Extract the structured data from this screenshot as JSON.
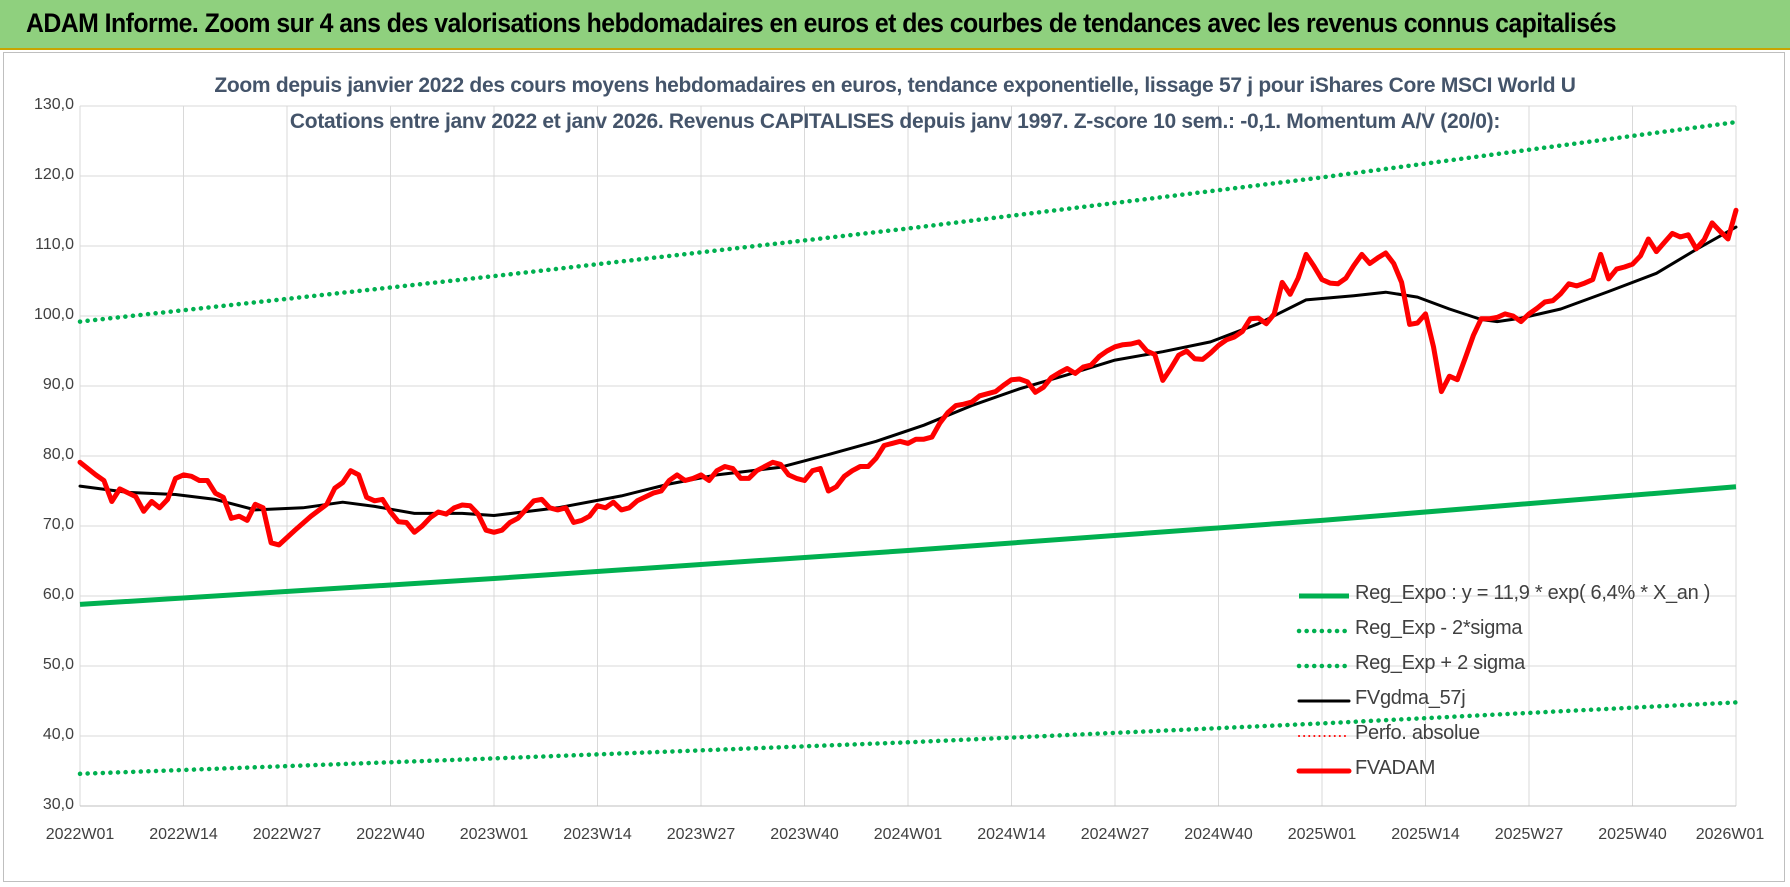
{
  "header": {
    "title": "ADAM Informe. Zoom sur 4 ans des valorisations hebdomadaires en euros et des courbes de tendances avec les revenus connus capitalisés"
  },
  "colors": {
    "header_bg": "#8fd07e",
    "regression": "#00b050",
    "fvgdma": "#000000",
    "fvadam": "#ff0000",
    "perfo": "#ff0000"
  },
  "chart_data": {
    "type": "line",
    "title": "Zoom depuis janvier 2022 des cours moyens hebdomadaires en euros, tendance exponentielle, lissage 57 j pour iShares Core MSCI World U",
    "subtitle": "Cotations entre janv 2022 et janv 2026. Revenus CAPITALISES depuis janv 1997. Z-score 10 sem.: -0,1. Momentum A/V (20/0):",
    "x_range_weeks": [
      0,
      208
    ],
    "ylim": [
      30,
      130
    ],
    "grid": true,
    "legend_position": "bottom-right",
    "y_ticks": [
      "30,0",
      "40,0",
      "50,0",
      "60,0",
      "70,0",
      "80,0",
      "90,0",
      "100,0",
      "110,0",
      "120,0",
      "130,0"
    ],
    "x_tick_positions_weeks": [
      0,
      13,
      26,
      39,
      52,
      65,
      78,
      91,
      104,
      117,
      130,
      143,
      156,
      169,
      182,
      195,
      208
    ],
    "x_ticks": [
      "2022W01",
      "2022W14",
      "2022W27",
      "2022W40",
      "2023W01",
      "2023W14",
      "2023W27",
      "2023W40",
      "2024W01",
      "2024W14",
      "2024W27",
      "2024W40",
      "2025W01",
      "2025W14",
      "2025W27",
      "2025W40",
      "2026W01"
    ],
    "series": [
      {
        "name": "Reg_Expo : y = 11,9 * exp( 6,4% *  X_an )",
        "key": "reg",
        "style": "solid",
        "points": [
          [
            0,
            58.8
          ],
          [
            52,
            62.5
          ],
          [
            104,
            66.5
          ],
          [
            156,
            70.8
          ],
          [
            208,
            75.6
          ]
        ]
      },
      {
        "name": "Reg_Exp - 2*sigma",
        "key": "reg_low",
        "style": "dotted",
        "points": [
          [
            0,
            34.6
          ],
          [
            52,
            36.8
          ],
          [
            104,
            39.1
          ],
          [
            156,
            41.8
          ],
          [
            208,
            44.8
          ]
        ]
      },
      {
        "name": "Reg_Exp + 2 sigma",
        "key": "reg_high",
        "style": "dotted",
        "points": [
          [
            0,
            99.2
          ],
          [
            52,
            105.7
          ],
          [
            104,
            112.5
          ],
          [
            156,
            119.8
          ],
          [
            208,
            127.7
          ]
        ]
      },
      {
        "name": "FVgdma_57j",
        "key": "fvgdma",
        "style": "solid",
        "points": [
          [
            0,
            75.7
          ],
          [
            6,
            74.8
          ],
          [
            12,
            74.5
          ],
          [
            17,
            73.8
          ],
          [
            22,
            72.3
          ],
          [
            28,
            72.6
          ],
          [
            33,
            73.4
          ],
          [
            37,
            72.8
          ],
          [
            42,
            71.8
          ],
          [
            48,
            71.8
          ],
          [
            52,
            71.5
          ],
          [
            60,
            72.6
          ],
          [
            68,
            74.3
          ],
          [
            74,
            76.0
          ],
          [
            80,
            77.3
          ],
          [
            88,
            78.4
          ],
          [
            94,
            80.2
          ],
          [
            100,
            82.1
          ],
          [
            106,
            84.4
          ],
          [
            112,
            87.2
          ],
          [
            118,
            89.6
          ],
          [
            124,
            91.6
          ],
          [
            130,
            93.7
          ],
          [
            136,
            94.9
          ],
          [
            142,
            96.3
          ],
          [
            148,
            98.9
          ],
          [
            154,
            102.3
          ],
          [
            160,
            102.9
          ],
          [
            164,
            103.4
          ],
          [
            168,
            102.7
          ],
          [
            172,
            101.0
          ],
          [
            176,
            99.5
          ],
          [
            178,
            99.2
          ],
          [
            181,
            99.7
          ],
          [
            186,
            101.0
          ],
          [
            192,
            103.5
          ],
          [
            198,
            106.1
          ],
          [
            203,
            109.5
          ],
          [
            208,
            112.7
          ]
        ]
      },
      {
        "name": "Perfo. absolue",
        "key": "perfo",
        "style": "dotted",
        "points": []
      },
      {
        "name": "FVADAM",
        "key": "fvadam",
        "style": "solid",
        "points": [
          [
            0,
            79.1
          ],
          [
            2,
            77.3
          ],
          [
            3,
            76.5
          ],
          [
            4,
            73.5
          ],
          [
            5,
            75.3
          ],
          [
            7,
            74.2
          ],
          [
            8,
            72.1
          ],
          [
            9,
            73.5
          ],
          [
            10,
            72.6
          ],
          [
            11,
            73.8
          ],
          [
            12,
            76.8
          ],
          [
            13,
            77.3
          ],
          [
            14,
            77.1
          ],
          [
            15,
            76.5
          ],
          [
            16,
            76.5
          ],
          [
            17,
            74.7
          ],
          [
            18,
            74.1
          ],
          [
            19,
            71.1
          ],
          [
            20,
            71.4
          ],
          [
            21,
            70.8
          ],
          [
            22,
            73.1
          ],
          [
            23,
            72.6
          ],
          [
            24,
            67.6
          ],
          [
            25,
            67.3
          ],
          [
            27,
            69.4
          ],
          [
            29,
            71.4
          ],
          [
            31,
            73.1
          ],
          [
            32,
            75.4
          ],
          [
            33,
            76.2
          ],
          [
            34,
            77.9
          ],
          [
            35,
            77.3
          ],
          [
            36,
            74.1
          ],
          [
            37,
            73.6
          ],
          [
            38,
            73.8
          ],
          [
            39,
            72.0
          ],
          [
            40,
            70.6
          ],
          [
            41,
            70.5
          ],
          [
            42,
            69.1
          ],
          [
            43,
            70.0
          ],
          [
            44,
            71.2
          ],
          [
            45,
            72.0
          ],
          [
            46,
            71.7
          ],
          [
            47,
            72.6
          ],
          [
            48,
            73.0
          ],
          [
            49,
            72.9
          ],
          [
            50,
            71.7
          ],
          [
            51,
            69.4
          ],
          [
            52,
            69.1
          ],
          [
            53,
            69.4
          ],
          [
            54,
            70.5
          ],
          [
            55,
            71.1
          ],
          [
            57,
            73.6
          ],
          [
            58,
            73.8
          ],
          [
            59,
            72.6
          ],
          [
            60,
            72.3
          ],
          [
            61,
            72.6
          ],
          [
            62,
            70.5
          ],
          [
            63,
            70.8
          ],
          [
            64,
            71.4
          ],
          [
            65,
            72.9
          ],
          [
            66,
            72.6
          ],
          [
            67,
            73.4
          ],
          [
            68,
            72.3
          ],
          [
            69,
            72.6
          ],
          [
            70,
            73.6
          ],
          [
            72,
            74.7
          ],
          [
            73,
            75.0
          ],
          [
            74,
            76.5
          ],
          [
            75,
            77.3
          ],
          [
            76,
            76.5
          ],
          [
            77,
            76.8
          ],
          [
            78,
            77.3
          ],
          [
            79,
            76.5
          ],
          [
            80,
            77.9
          ],
          [
            81,
            78.5
          ],
          [
            82,
            78.2
          ],
          [
            83,
            76.8
          ],
          [
            84,
            76.8
          ],
          [
            85,
            77.9
          ],
          [
            86,
            78.5
          ],
          [
            87,
            79.1
          ],
          [
            88,
            78.8
          ],
          [
            89,
            77.3
          ],
          [
            90,
            76.8
          ],
          [
            91,
            76.5
          ],
          [
            92,
            77.9
          ],
          [
            93,
            78.2
          ],
          [
            94,
            75.0
          ],
          [
            95,
            75.6
          ],
          [
            96,
            77.1
          ],
          [
            97,
            77.9
          ],
          [
            98,
            78.5
          ],
          [
            99,
            78.5
          ],
          [
            100,
            79.7
          ],
          [
            101,
            81.5
          ],
          [
            102,
            81.8
          ],
          [
            103,
            82.1
          ],
          [
            104,
            81.8
          ],
          [
            105,
            82.4
          ],
          [
            106,
            82.4
          ],
          [
            107,
            82.7
          ],
          [
            108,
            84.7
          ],
          [
            109,
            86.2
          ],
          [
            110,
            87.2
          ],
          [
            111,
            87.4
          ],
          [
            112,
            87.7
          ],
          [
            113,
            88.6
          ],
          [
            114,
            88.9
          ],
          [
            115,
            89.2
          ],
          [
            116,
            90.1
          ],
          [
            117,
            90.9
          ],
          [
            118,
            91.0
          ],
          [
            119,
            90.6
          ],
          [
            120,
            89.1
          ],
          [
            121,
            89.8
          ],
          [
            122,
            91.2
          ],
          [
            123,
            91.9
          ],
          [
            124,
            92.5
          ],
          [
            125,
            91.8
          ],
          [
            126,
            92.7
          ],
          [
            127,
            93.0
          ],
          [
            128,
            94.2
          ],
          [
            129,
            95.0
          ],
          [
            130,
            95.6
          ],
          [
            131,
            95.9
          ],
          [
            132,
            96.0
          ],
          [
            133,
            96.3
          ],
          [
            134,
            95.0
          ],
          [
            135,
            94.5
          ],
          [
            136,
            90.8
          ],
          [
            137,
            92.5
          ],
          [
            138,
            94.4
          ],
          [
            139,
            95.0
          ],
          [
            140,
            93.9
          ],
          [
            141,
            93.8
          ],
          [
            142,
            94.7
          ],
          [
            143,
            95.8
          ],
          [
            144,
            96.6
          ],
          [
            145,
            97.0
          ],
          [
            146,
            97.8
          ],
          [
            147,
            99.6
          ],
          [
            148,
            99.7
          ],
          [
            149,
            98.9
          ],
          [
            150,
            100.3
          ],
          [
            151,
            104.8
          ],
          [
            152,
            103.1
          ],
          [
            153,
            105.4
          ],
          [
            154,
            108.8
          ],
          [
            155,
            107.1
          ],
          [
            156,
            105.2
          ],
          [
            157,
            104.7
          ],
          [
            158,
            104.6
          ],
          [
            159,
            105.4
          ],
          [
            160,
            107.2
          ],
          [
            161,
            108.8
          ],
          [
            162,
            107.5
          ],
          [
            163,
            108.3
          ],
          [
            164,
            109.0
          ],
          [
            165,
            107.5
          ],
          [
            166,
            104.8
          ],
          [
            167,
            98.8
          ],
          [
            168,
            99.0
          ],
          [
            169,
            100.3
          ],
          [
            170,
            95.6
          ],
          [
            171,
            89.2
          ],
          [
            172,
            91.4
          ],
          [
            173,
            90.9
          ],
          [
            174,
            94.0
          ],
          [
            175,
            97.2
          ],
          [
            176,
            99.6
          ],
          [
            177,
            99.6
          ],
          [
            178,
            99.8
          ],
          [
            179,
            100.3
          ],
          [
            180,
            100.0
          ],
          [
            181,
            99.2
          ],
          [
            182,
            100.3
          ],
          [
            183,
            101.1
          ],
          [
            184,
            102.0
          ],
          [
            185,
            102.2
          ],
          [
            186,
            103.2
          ],
          [
            187,
            104.6
          ],
          [
            188,
            104.3
          ],
          [
            189,
            104.7
          ],
          [
            190,
            105.2
          ],
          [
            191,
            108.8
          ],
          [
            192,
            105.3
          ],
          [
            193,
            106.7
          ],
          [
            194,
            107.0
          ],
          [
            195,
            107.4
          ],
          [
            196,
            108.6
          ],
          [
            197,
            111.0
          ],
          [
            198,
            109.2
          ],
          [
            199,
            110.5
          ],
          [
            200,
            111.8
          ],
          [
            201,
            111.3
          ],
          [
            202,
            111.6
          ],
          [
            203,
            109.6
          ],
          [
            204,
            110.9
          ],
          [
            205,
            113.3
          ],
          [
            206,
            112.1
          ],
          [
            207,
            111.0
          ],
          [
            208,
            115.1
          ]
        ]
      }
    ]
  }
}
